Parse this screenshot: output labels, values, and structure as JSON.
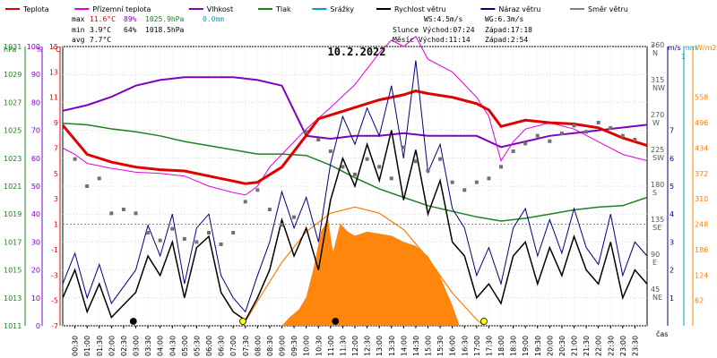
{
  "chart_data": {
    "type": "line",
    "title": "10.2.2022",
    "legend": [
      {
        "name": "Teplota",
        "color": "#e00000"
      },
      {
        "name": "Přízemní teplota",
        "color": "#e000e0"
      },
      {
        "name": "Vlhkost",
        "color": "#8000c0"
      },
      {
        "name": "Tlak",
        "color": "#208020"
      },
      {
        "name": "Srážky",
        "color": "#00a0c0"
      },
      {
        "name": "Rychlost větru",
        "color": "#000000"
      },
      {
        "name": "Náraz větru",
        "color": "#000080"
      },
      {
        "name": "Směr větru",
        "color": "#808080"
      }
    ],
    "stats": {
      "max": {
        "label": "max",
        "temp": "11.6°C",
        "hum": "89%",
        "press": "1025.9hPa",
        "rain": "0.0mm"
      },
      "min": {
        "label": "min",
        "temp": "3.9°C",
        "hum": "64%",
        "press": "1018.5hPa"
      },
      "avg": {
        "label": "avg",
        "temp": "7.7°C"
      }
    },
    "wind_info": {
      "ws": "WS:4.5m/s",
      "wg": "WG:6.3m/s"
    },
    "sun": {
      "rise": "Slunce Východ:07:24",
      "set": "Západ:17:18"
    },
    "moon": {
      "rise": "Měsíc Východ:11:14",
      "set": "Západ:2:54"
    },
    "axis_units": {
      "hpa": "hPa",
      "pct": "%",
      "degc": "°C",
      "dir": "°",
      "ms": "m/s",
      "mm": "mm",
      "wm2": "W/m2"
    },
    "x_label": "čas",
    "x_ticks": [
      "00:30",
      "01:00",
      "01:30",
      "02:00",
      "02:30",
      "03:00",
      "03:30",
      "04:00",
      "04:30",
      "05:00",
      "05:30",
      "06:00",
      "06:30",
      "07:00",
      "07:30",
      "08:00",
      "08:30",
      "09:00",
      "09:30",
      "10:00",
      "10:30",
      "11:00",
      "11:30",
      "12:00",
      "12:30",
      "13:00",
      "13:30",
      "14:00",
      "14:30",
      "15:00",
      "15:30",
      "16:00",
      "16:30",
      "17:00",
      "17:30",
      "18:00",
      "18:30",
      "19:00",
      "19:30",
      "20:00",
      "20:30",
      "21:00",
      "21:30",
      "22:00",
      "22:30",
      "23:00",
      "23:30"
    ],
    "x_range_hours": [
      0,
      24
    ],
    "pressure_ticks": [
      "1031",
      "1029",
      "1027",
      "1025",
      "1023",
      "1021",
      "1019",
      "1017",
      "1015",
      "1013",
      "1011"
    ],
    "pressure_range": [
      1011,
      1031
    ],
    "humidity_ticks": [
      "100",
      "90",
      "80",
      "70",
      "60",
      "50",
      "40",
      "30",
      "20",
      "10",
      "0"
    ],
    "temp_ticks": [
      "15",
      "13",
      "11",
      "9",
      "7",
      "5",
      "3",
      "1",
      "-1",
      "-3",
      "-5",
      "-7"
    ],
    "temp_range": [
      -7,
      15
    ],
    "dir_ticks": [
      {
        "deg": "360",
        "name": "N"
      },
      {
        "deg": "315",
        "name": "NW"
      },
      {
        "deg": "270",
        "name": "W"
      },
      {
        "deg": "225",
        "name": "SW"
      },
      {
        "deg": "180",
        "name": "S"
      },
      {
        "deg": "135",
        "name": "SE"
      },
      {
        "deg": "90",
        "name": "E"
      },
      {
        "deg": "45",
        "name": "NE"
      }
    ],
    "wind_ticks": [
      "7",
      "6",
      "5",
      "4",
      "3",
      "2",
      "1"
    ],
    "wind_range": [
      0,
      10
    ],
    "rain_ticks": [
      "1"
    ],
    "solar_ticks": [
      "558",
      "496",
      "434",
      "372",
      "310",
      "248",
      "186",
      "124",
      "62"
    ],
    "solar_range": [
      0,
      682
    ],
    "temperature": [
      [
        0,
        8.8
      ],
      [
        1,
        6.5
      ],
      [
        2,
        5.9
      ],
      [
        3,
        5.5
      ],
      [
        4,
        5.3
      ],
      [
        5,
        5.2
      ],
      [
        6,
        4.8
      ],
      [
        7,
        4.4
      ],
      [
        7.5,
        4.2
      ],
      [
        8,
        4.3
      ],
      [
        9,
        5.5
      ],
      [
        10,
        8.0
      ],
      [
        10.5,
        9.3
      ],
      [
        11,
        9.6
      ],
      [
        12,
        10.2
      ],
      [
        13,
        10.8
      ],
      [
        14,
        11.2
      ],
      [
        14.5,
        11.5
      ],
      [
        15,
        11.3
      ],
      [
        16,
        11.0
      ],
      [
        17,
        10.5
      ],
      [
        17.5,
        10.0
      ],
      [
        18,
        8.7
      ],
      [
        19,
        9.2
      ],
      [
        20,
        9.0
      ],
      [
        21,
        8.9
      ],
      [
        22,
        8.6
      ],
      [
        23,
        7.8
      ],
      [
        24,
        7.2
      ]
    ],
    "ground_temp": [
      [
        0,
        7.0
      ],
      [
        0.5,
        6.5
      ],
      [
        1,
        5.8
      ],
      [
        2,
        5.4
      ],
      [
        3,
        5.1
      ],
      [
        4,
        5.0
      ],
      [
        5,
        4.8
      ],
      [
        6,
        4.0
      ],
      [
        7,
        3.5
      ],
      [
        7.5,
        3.3
      ],
      [
        8,
        4.0
      ],
      [
        8.5,
        5.5
      ],
      [
        9,
        6.5
      ],
      [
        10,
        8.5
      ],
      [
        11,
        10.2
      ],
      [
        12,
        12.0
      ],
      [
        13,
        14.5
      ],
      [
        13.5,
        15.5
      ],
      [
        14,
        15.0
      ],
      [
        14.5,
        15.8
      ],
      [
        15,
        14.0
      ],
      [
        16,
        13.0
      ],
      [
        17,
        11.0
      ],
      [
        17.5,
        9.5
      ],
      [
        18,
        6.0
      ],
      [
        18.5,
        7.5
      ],
      [
        19,
        8.5
      ],
      [
        20,
        9.0
      ],
      [
        21,
        8.5
      ],
      [
        22,
        7.5
      ],
      [
        23,
        6.5
      ],
      [
        24,
        6.0
      ]
    ],
    "humidity": [
      [
        0,
        77
      ],
      [
        1,
        79
      ],
      [
        2,
        82
      ],
      [
        3,
        86
      ],
      [
        4,
        88
      ],
      [
        5,
        89
      ],
      [
        6,
        89
      ],
      [
        7,
        89
      ],
      [
        8,
        88
      ],
      [
        9,
        86
      ],
      [
        10,
        68
      ],
      [
        11,
        67
      ],
      [
        12,
        68
      ],
      [
        13,
        68
      ],
      [
        14,
        69
      ],
      [
        15,
        68
      ],
      [
        16,
        68
      ],
      [
        17,
        68
      ],
      [
        18,
        64
      ],
      [
        19,
        66
      ],
      [
        20,
        68
      ],
      [
        21,
        69
      ],
      [
        22,
        70
      ],
      [
        23,
        71
      ],
      [
        24,
        72
      ]
    ],
    "pressure": [
      [
        0,
        1025.5
      ],
      [
        1,
        1025.4
      ],
      [
        2,
        1025.1
      ],
      [
        3,
        1024.9
      ],
      [
        4,
        1024.6
      ],
      [
        5,
        1024.2
      ],
      [
        6,
        1023.9
      ],
      [
        7,
        1023.6
      ],
      [
        8,
        1023.3
      ],
      [
        9,
        1023.3
      ],
      [
        10,
        1023.2
      ],
      [
        11,
        1022.5
      ],
      [
        12,
        1021.6
      ],
      [
        13,
        1020.8
      ],
      [
        14,
        1020.2
      ],
      [
        15,
        1019.6
      ],
      [
        16,
        1019.2
      ],
      [
        17,
        1018.8
      ],
      [
        18,
        1018.5
      ],
      [
        19,
        1018.7
      ],
      [
        20,
        1019.0
      ],
      [
        21,
        1019.3
      ],
      [
        22,
        1019.5
      ],
      [
        23,
        1019.6
      ],
      [
        24,
        1020.2
      ]
    ],
    "wind_speed": [
      [
        0,
        1.0
      ],
      [
        0.5,
        2.0
      ],
      [
        1,
        0.5
      ],
      [
        1.5,
        1.5
      ],
      [
        2,
        0.3
      ],
      [
        3,
        1.2
      ],
      [
        3.5,
        2.5
      ],
      [
        4,
        1.8
      ],
      [
        4.5,
        3.0
      ],
      [
        5,
        1.0
      ],
      [
        5.5,
        2.8
      ],
      [
        6,
        3.2
      ],
      [
        6.5,
        1.2
      ],
      [
        7,
        0.5
      ],
      [
        7.5,
        0.2
      ],
      [
        8,
        1.0
      ],
      [
        8.5,
        2.0
      ],
      [
        9,
        3.8
      ],
      [
        9.5,
        2.5
      ],
      [
        10,
        3.5
      ],
      [
        10.5,
        2.0
      ],
      [
        11,
        4.5
      ],
      [
        11.5,
        6.0
      ],
      [
        12,
        5.0
      ],
      [
        12.5,
        6.5
      ],
      [
        13,
        5.2
      ],
      [
        13.5,
        7.0
      ],
      [
        14,
        4.5
      ],
      [
        14.5,
        6.3
      ],
      [
        15,
        4.0
      ],
      [
        15.5,
        5.2
      ],
      [
        16,
        3.0
      ],
      [
        16.5,
        2.5
      ],
      [
        17,
        1.0
      ],
      [
        17.5,
        1.5
      ],
      [
        18,
        0.8
      ],
      [
        18.5,
        2.5
      ],
      [
        19,
        3.0
      ],
      [
        19.5,
        1.5
      ],
      [
        20,
        2.8
      ],
      [
        20.5,
        1.8
      ],
      [
        21,
        3.2
      ],
      [
        21.5,
        2.0
      ],
      [
        22,
        1.5
      ],
      [
        22.5,
        3.0
      ],
      [
        23,
        1.0
      ],
      [
        23.5,
        2.0
      ],
      [
        24,
        1.5
      ]
    ],
    "wind_gust": [
      [
        0,
        1.5
      ],
      [
        0.5,
        2.6
      ],
      [
        1,
        1.0
      ],
      [
        1.5,
        2.2
      ],
      [
        2,
        0.8
      ],
      [
        3,
        2.0
      ],
      [
        3.5,
        3.6
      ],
      [
        4,
        2.5
      ],
      [
        4.5,
        4.0
      ],
      [
        5,
        1.5
      ],
      [
        5.5,
        3.5
      ],
      [
        6,
        4.0
      ],
      [
        6.5,
        1.8
      ],
      [
        7,
        1.0
      ],
      [
        7.5,
        0.5
      ],
      [
        8,
        1.8
      ],
      [
        8.5,
        3.0
      ],
      [
        9,
        4.8
      ],
      [
        9.5,
        3.5
      ],
      [
        10,
        4.6
      ],
      [
        10.5,
        3.0
      ],
      [
        11,
        5.8
      ],
      [
        11.5,
        7.5
      ],
      [
        12,
        6.5
      ],
      [
        12.5,
        7.8
      ],
      [
        13,
        6.8
      ],
      [
        13.5,
        8.6
      ],
      [
        14,
        6.0
      ],
      [
        14.5,
        9.5
      ],
      [
        15,
        5.5
      ],
      [
        15.5,
        6.5
      ],
      [
        16,
        4.2
      ],
      [
        16.5,
        3.5
      ],
      [
        17,
        1.8
      ],
      [
        17.5,
        2.8
      ],
      [
        18,
        1.5
      ],
      [
        18.5,
        3.5
      ],
      [
        19,
        4.2
      ],
      [
        19.5,
        2.5
      ],
      [
        20,
        3.8
      ],
      [
        20.5,
        2.6
      ],
      [
        21,
        4.2
      ],
      [
        21.5,
        2.8
      ],
      [
        22,
        2.2
      ],
      [
        22.5,
        4.0
      ],
      [
        23,
        1.8
      ],
      [
        23.5,
        3.0
      ],
      [
        24,
        2.5
      ]
    ],
    "wind_dir": [
      [
        0.5,
        215
      ],
      [
        1,
        180
      ],
      [
        1.5,
        190
      ],
      [
        2,
        145
      ],
      [
        2.5,
        150
      ],
      [
        3,
        145
      ],
      [
        3.5,
        120
      ],
      [
        4,
        110
      ],
      [
        4.5,
        125
      ],
      [
        5,
        112
      ],
      [
        5.5,
        108
      ],
      [
        6,
        120
      ],
      [
        6.5,
        105
      ],
      [
        7,
        120
      ],
      [
        7.5,
        160
      ],
      [
        8,
        175
      ],
      [
        8.5,
        150
      ],
      [
        9,
        130
      ],
      [
        9.5,
        140
      ],
      [
        10,
        250
      ],
      [
        10.5,
        240
      ],
      [
        11,
        225
      ],
      [
        11.5,
        205
      ],
      [
        12,
        195
      ],
      [
        12.5,
        215
      ],
      [
        13,
        205
      ],
      [
        13.5,
        190
      ],
      [
        14,
        230
      ],
      [
        14.5,
        212
      ],
      [
        15,
        200
      ],
      [
        15.5,
        215
      ],
      [
        16,
        185
      ],
      [
        16.5,
        175
      ],
      [
        17,
        185
      ],
      [
        17.5,
        190
      ],
      [
        18,
        205
      ],
      [
        18.5,
        225
      ],
      [
        19,
        235
      ],
      [
        19.5,
        245
      ],
      [
        20,
        238
      ],
      [
        20.5,
        248
      ],
      [
        21,
        258
      ],
      [
        21.5,
        250
      ],
      [
        22,
        262
      ],
      [
        22.5,
        255
      ],
      [
        23,
        245
      ],
      [
        23.5,
        240
      ]
    ],
    "solar": [
      [
        9,
        0
      ],
      [
        9.3,
        20
      ],
      [
        9.7,
        40
      ],
      [
        10,
        70
      ],
      [
        10.3,
        140
      ],
      [
        10.6,
        230
      ],
      [
        10.9,
        260
      ],
      [
        11.1,
        180
      ],
      [
        11.4,
        250
      ],
      [
        11.7,
        230
      ],
      [
        12,
        220
      ],
      [
        12.5,
        230
      ],
      [
        13,
        225
      ],
      [
        13.5,
        220
      ],
      [
        14,
        205
      ],
      [
        14.5,
        195
      ],
      [
        15,
        170
      ],
      [
        15.5,
        120
      ],
      [
        16,
        50
      ],
      [
        16.3,
        0
      ]
    ],
    "solar_max": [
      [
        7.4,
        0
      ],
      [
        8,
        60
      ],
      [
        9,
        155
      ],
      [
        10,
        230
      ],
      [
        11,
        275
      ],
      [
        12,
        290
      ],
      [
        13,
        275
      ],
      [
        14,
        235
      ],
      [
        15,
        165
      ],
      [
        16,
        80
      ],
      [
        17,
        15
      ],
      [
        17.3,
        0
      ]
    ],
    "markers": [
      {
        "hour": 2.9,
        "symbol": "moonset",
        "color": "#000000"
      },
      {
        "hour": 7.4,
        "symbol": "sunrise",
        "color": "#ffff00"
      },
      {
        "hour": 11.2,
        "symbol": "moonrise",
        "color": "#000000"
      },
      {
        "hour": 17.3,
        "symbol": "sunset",
        "color": "#ffff00"
      }
    ],
    "colors": {
      "temperature": "#e00000",
      "ground_temp": "#e000e0",
      "humidity": "#8000c0",
      "pressure": "#208020",
      "wind_speed": "#000000",
      "wind_gust": "#000080",
      "wind_dir": "#707070",
      "solar": "#ff8000",
      "solar_max": "#ff8000",
      "rain": "#00a0c0"
    }
  }
}
